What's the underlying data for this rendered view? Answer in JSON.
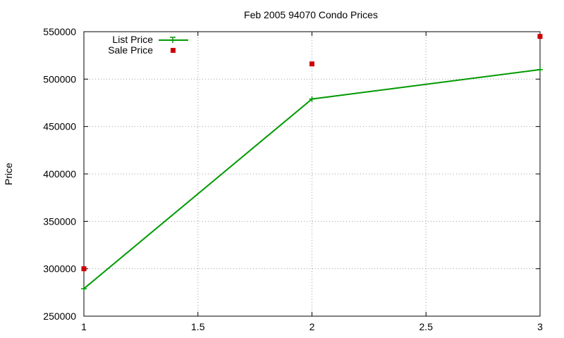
{
  "chart_data": {
    "type": "line",
    "title": "Feb 2005 94070 Condo Prices",
    "xlabel": "",
    "ylabel": "Price",
    "xlim": [
      1,
      3
    ],
    "ylim": [
      250000,
      550000
    ],
    "xticks": [
      1,
      1.5,
      2,
      2.5,
      3
    ],
    "yticks": [
      250000,
      300000,
      350000,
      400000,
      450000,
      500000,
      550000
    ],
    "grid": true,
    "legend_position": "top-left",
    "series": [
      {
        "name": "List Price",
        "style": "line-with-plus-markers",
        "color": "#009900",
        "x": [
          1,
          2,
          3
        ],
        "y": [
          279000,
          479000,
          510000
        ]
      },
      {
        "name": "Sale Price",
        "style": "square-markers",
        "color": "#cc0000",
        "x": [
          1,
          2,
          3
        ],
        "y": [
          300000,
          516000,
          545000
        ]
      }
    ]
  }
}
